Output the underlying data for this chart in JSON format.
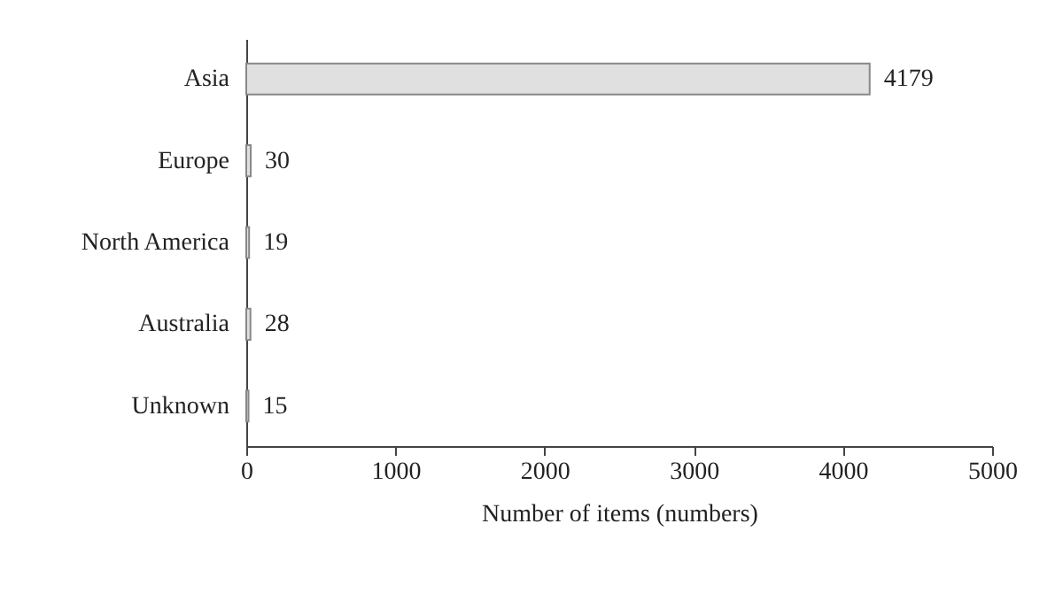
{
  "chart_data": {
    "type": "bar",
    "orientation": "horizontal",
    "categories": [
      "Asia",
      "Europe",
      "North America",
      "Australia",
      "Unknown"
    ],
    "values": [
      4179,
      30,
      19,
      28,
      15
    ],
    "color": "#e0e0e0",
    "xlim": [
      0,
      5000
    ],
    "xticks": [
      0,
      1000,
      2000,
      3000,
      4000,
      5000
    ],
    "xlabel": "Number of items (numbers)",
    "data_labels": true,
    "grid": false
  }
}
